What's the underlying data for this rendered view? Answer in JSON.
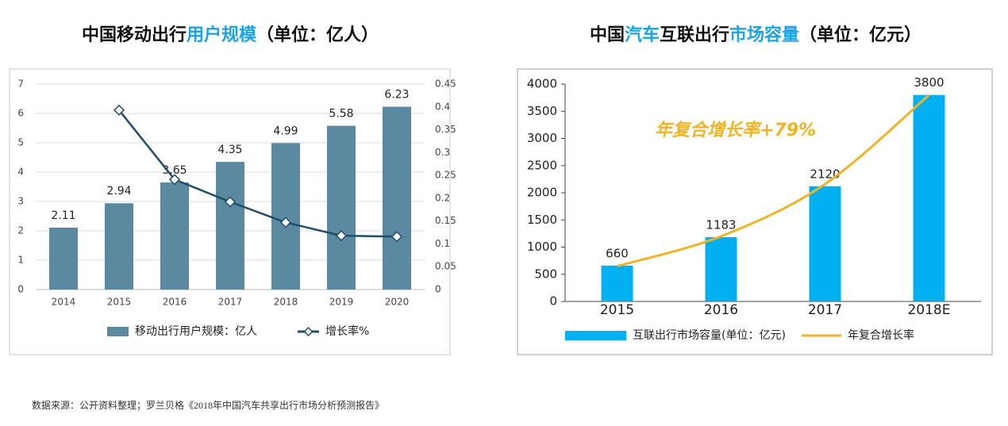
{
  "chart_data": [
    {
      "type": "bar",
      "title": [
        "中国移动出行",
        "用户规模",
        "（单位：亿人）"
      ],
      "title_colors": [
        "#111111",
        "#1aa3e8",
        "#111111"
      ],
      "categories": [
        "2014",
        "2015",
        "2016",
        "2017",
        "2018",
        "2019",
        "2020"
      ],
      "series": [
        {
          "name": "移动出行用户规模：亿人",
          "type": "bar",
          "color": "#5b8aa0",
          "values": [
            2.11,
            2.94,
            3.65,
            4.35,
            4.99,
            5.58,
            6.23
          ]
        },
        {
          "name": "增长率%",
          "type": "line",
          "axis": "y2",
          "color": "#1f4e6b",
          "values": [
            null,
            0.393,
            0.241,
            0.192,
            0.147,
            0.118,
            0.116
          ]
        }
      ],
      "ylim": [
        0,
        7
      ],
      "yticks": [
        0,
        1,
        2,
        3,
        4,
        5,
        6,
        7
      ],
      "y2lim": [
        0,
        0.45
      ],
      "y2ticks": [
        0,
        0.05,
        0.1,
        0.15,
        0.2,
        0.25,
        0.3,
        0.35,
        0.4,
        0.45
      ],
      "grid": true
    },
    {
      "type": "bar",
      "title": [
        "中国",
        "汽车",
        "互联出行",
        "市场容量",
        "（单位：亿元）"
      ],
      "title_colors": [
        "#111111",
        "#1aa3e8",
        "#111111",
        "#1aa3e8",
        "#111111"
      ],
      "categories": [
        "2015",
        "2016",
        "2017",
        "2018E"
      ],
      "series": [
        {
          "name": "互联出行市场容量(单位：亿元)",
          "type": "bar",
          "color": "#00b0f0",
          "values": [
            660,
            1183,
            2120,
            3800
          ]
        },
        {
          "name": "年复合增长率",
          "type": "line",
          "smooth": true,
          "color": "#f0b323",
          "values": [
            650,
            1200,
            2160,
            3800
          ]
        }
      ],
      "annotation": "年复合增长率+79%",
      "ylim": [
        0,
        4000
      ],
      "yticks": [
        0,
        500,
        1000,
        1500,
        2000,
        2500,
        3000,
        3500,
        4000
      ],
      "grid": false
    }
  ],
  "source": "数据来源：公开资料整理；罗兰贝格《2018年中国汽车共享出行市场分析预测报告》"
}
